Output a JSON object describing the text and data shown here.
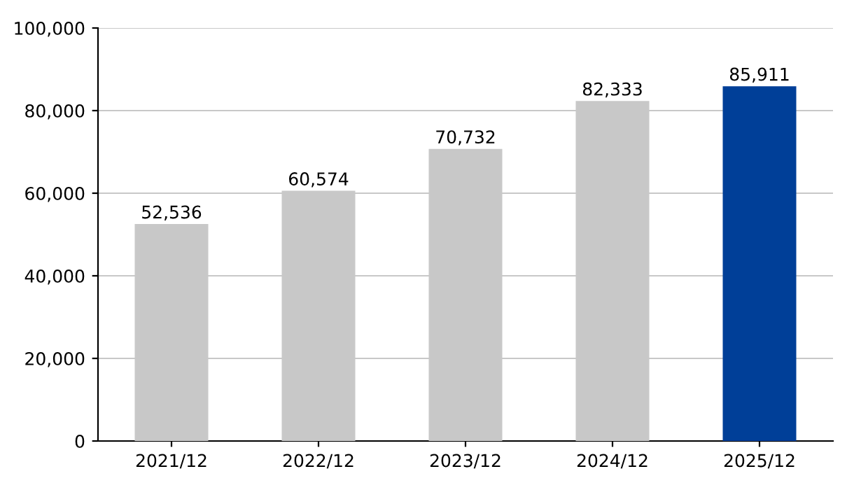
{
  "chart_data": {
    "type": "bar",
    "categories": [
      "2021/12",
      "2022/12",
      "2023/12",
      "2024/12",
      "2025/12"
    ],
    "values": [
      52536,
      60574,
      70732,
      82333,
      85911
    ],
    "colors": [
      "#c8c8c8",
      "#c8c8c8",
      "#c8c8c8",
      "#c8c8c8",
      "#003f98"
    ],
    "value_labels": [
      "52,536",
      "60,574",
      "70,732",
      "82,333",
      "85,911"
    ],
    "ylim": [
      0,
      100000
    ],
    "yticks": [
      0,
      {
        "value": 20000,
        "label": "20,000"
      },
      {
        "value": 40000,
        "label": "40,000"
      },
      {
        "value": 60000,
        "label": "60,000"
      },
      {
        "value": 80000,
        "label": "80,000"
      },
      {
        "value": 100000,
        "label": "100,000"
      }
    ],
    "grid": "y"
  }
}
